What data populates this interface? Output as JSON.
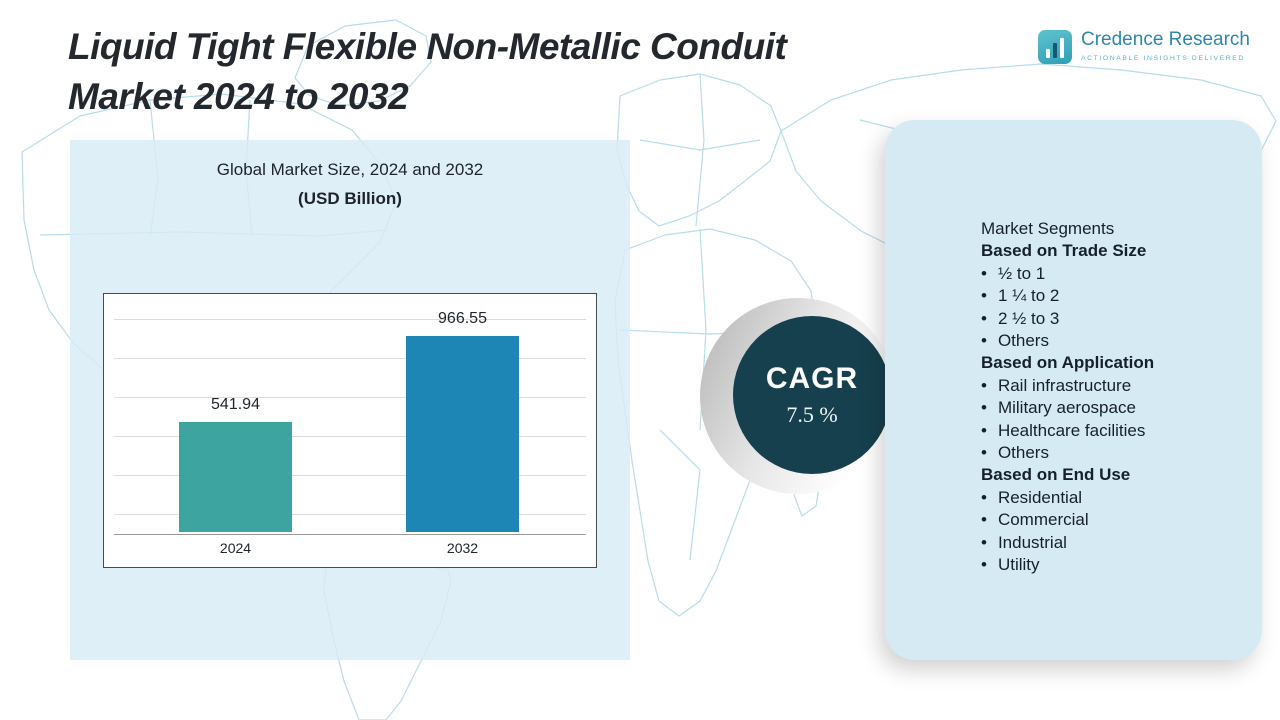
{
  "page": {
    "title_line1": "Liquid Tight Flexible Non-Metallic Conduit",
    "title_line2": "Market 2024 to 2032"
  },
  "logo": {
    "brand": "Credence Research",
    "tagline": "Actionable Insights Delivered"
  },
  "chart_data": {
    "type": "bar",
    "title": "Global Market Size, 2024 and 2032",
    "subtitle": "(USD Billion)",
    "categories": [
      "2024",
      "2032"
    ],
    "values": [
      541.94,
      966.55
    ],
    "bar_colors": [
      "#3da49f",
      "#1e86b4"
    ],
    "ylim": [
      0,
      1100
    ],
    "grid": true,
    "legend": "none"
  },
  "cagr": {
    "label": "CAGR",
    "value": "7.5 %"
  },
  "segments": {
    "title": "Market Segments",
    "groups": [
      {
        "heading": "Based on Trade Size",
        "items": [
          "½ to 1",
          "1 ¼ to 2",
          "2 ½ to 3",
          "Others"
        ]
      },
      {
        "heading": "Based on Application",
        "items": [
          "Rail infrastructure",
          "Military aerospace",
          "Healthcare facilities",
          "Others"
        ]
      },
      {
        "heading": "Based on End Use",
        "items": [
          "Residential",
          "Commercial",
          "Industrial",
          "Utility"
        ]
      }
    ]
  },
  "colors": {
    "panel": "#d8ecf6",
    "card": "#d6eaf3",
    "cagr_circle": "#16404e",
    "map_line": "#b7dcea",
    "bar_2024": "#3da49f",
    "bar_2032": "#1e86b4"
  }
}
